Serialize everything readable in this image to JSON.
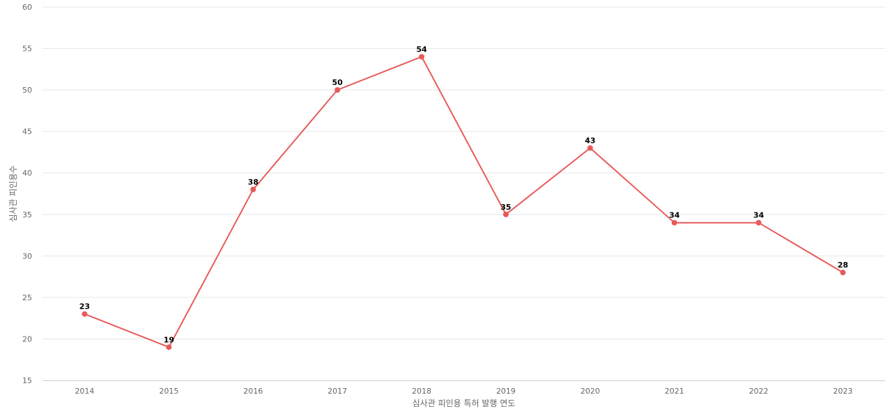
{
  "chart_data": {
    "type": "line",
    "title": "",
    "xlabel": "심사관 피인용 특허 발행 연도",
    "ylabel": "심사관 피인용수",
    "categories": [
      "2014",
      "2015",
      "2016",
      "2017",
      "2018",
      "2019",
      "2020",
      "2021",
      "2022",
      "2023"
    ],
    "series": [
      {
        "values": [
          23,
          19,
          38,
          50,
          54,
          35,
          43,
          34,
          34,
          28
        ],
        "color": "#e85a5a"
      }
    ],
    "ylim": [
      15,
      60
    ],
    "yticks": [
      15,
      20,
      25,
      30,
      35,
      40,
      45,
      50,
      55,
      60
    ],
    "grid": true,
    "data_labels": true
  }
}
